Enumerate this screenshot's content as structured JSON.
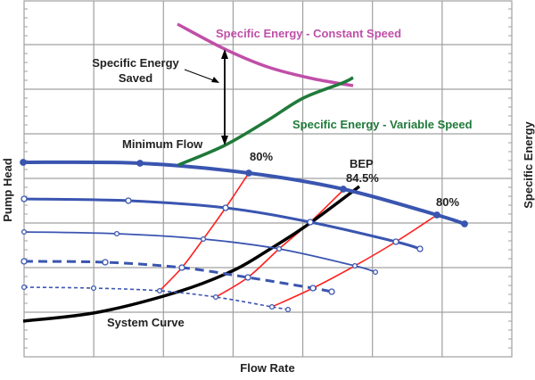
{
  "axes": {
    "x_label": "Flow Rate",
    "y_left_label": "Pump Head",
    "y_right_label": "Specific Energy"
  },
  "labels": {
    "constant_speed": "Specific Energy - Constant Speed",
    "variable_speed": "Specific Energy - Variable Speed",
    "saved_line1": "Specific Energy",
    "saved_line2": "Saved",
    "minimum_flow": "Minimum Flow",
    "eff_left": "80%",
    "bep": "BEP",
    "bep_value": "84.5%",
    "eff_right": "80%",
    "system_curve": "System Curve"
  },
  "colors": {
    "pump_curves": "#3a55b0",
    "efficiency_lines": "#ff2020",
    "system_curve": "#000000",
    "constant_speed": "#c04fa8",
    "variable_speed": "#1f7a3a",
    "grid": "#a0a0a0"
  }
}
